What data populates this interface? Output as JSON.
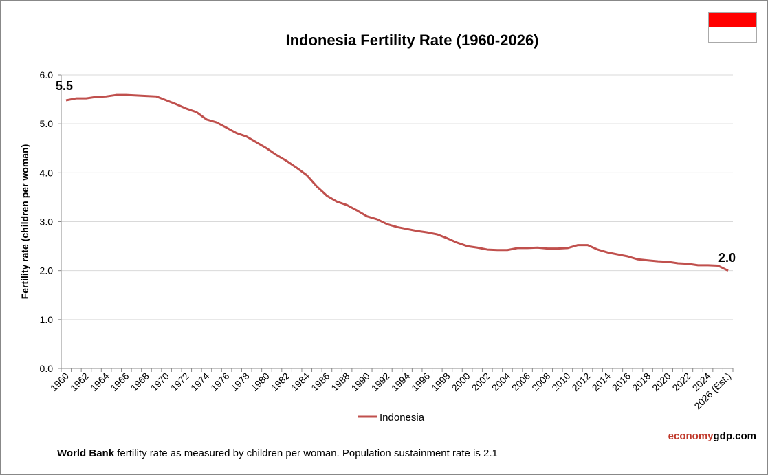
{
  "chart_data": {
    "type": "line",
    "title": "Indonesia Fertility Rate (1960-2026)",
    "ylabel": "Fertility rate (children per woman)",
    "xlabel": "",
    "ylim": [
      0,
      6
    ],
    "yticks": [
      "0.0",
      "1.0",
      "2.0",
      "3.0",
      "4.0",
      "5.0",
      "6.0"
    ],
    "grid": true,
    "legend": "bottom-center",
    "xtick_labels": [
      "1960",
      "1962",
      "1964",
      "1966",
      "1968",
      "1970",
      "1972",
      "1974",
      "1976",
      "1978",
      "1980",
      "1982",
      "1984",
      "1986",
      "1988",
      "1990",
      "1992",
      "1994",
      "1996",
      "1998",
      "2000",
      "2002",
      "2004",
      "2006",
      "2008",
      "2010",
      "2012",
      "2014",
      "2016",
      "2018",
      "2020",
      "2022",
      "2024",
      "2026 (Est.)"
    ],
    "x": [
      1960,
      1961,
      1962,
      1963,
      1964,
      1965,
      1966,
      1967,
      1968,
      1969,
      1970,
      1971,
      1972,
      1973,
      1974,
      1975,
      1976,
      1977,
      1978,
      1979,
      1980,
      1981,
      1982,
      1983,
      1984,
      1985,
      1986,
      1987,
      1988,
      1989,
      1990,
      1991,
      1992,
      1993,
      1994,
      1995,
      1996,
      1997,
      1998,
      1999,
      2000,
      2001,
      2002,
      2003,
      2004,
      2005,
      2006,
      2007,
      2008,
      2009,
      2010,
      2011,
      2012,
      2013,
      2014,
      2015,
      2016,
      2017,
      2018,
      2019,
      2020,
      2021,
      2022,
      2023,
      2024,
      2025,
      2026
    ],
    "series": [
      {
        "name": "Indonesia",
        "color": "#c0504d",
        "values": [
          5.48,
          5.52,
          5.52,
          5.55,
          5.56,
          5.59,
          5.59,
          5.58,
          5.57,
          5.56,
          5.48,
          5.4,
          5.31,
          5.24,
          5.09,
          5.03,
          4.92,
          4.81,
          4.74,
          4.62,
          4.5,
          4.36,
          4.24,
          4.1,
          3.95,
          3.72,
          3.53,
          3.41,
          3.34,
          3.23,
          3.11,
          3.05,
          2.95,
          2.89,
          2.85,
          2.81,
          2.78,
          2.74,
          2.66,
          2.57,
          2.5,
          2.47,
          2.43,
          2.42,
          2.42,
          2.46,
          2.46,
          2.47,
          2.45,
          2.45,
          2.46,
          2.52,
          2.52,
          2.43,
          2.37,
          2.33,
          2.29,
          2.23,
          2.21,
          2.19,
          2.18,
          2.15,
          2.14,
          2.11,
          2.11,
          2.1,
          2.0
        ]
      }
    ],
    "annotations": {
      "start": "5.5",
      "end": "2.0"
    }
  },
  "flag_colors": [
    "#ff0000",
    "#ffffff"
  ],
  "brand": {
    "part1": "economy",
    "part2": "gdp.com"
  },
  "note": {
    "bold": "World Bank",
    "text": " fertility rate as measured by children per woman.  Population sustainment rate is 2.1"
  }
}
